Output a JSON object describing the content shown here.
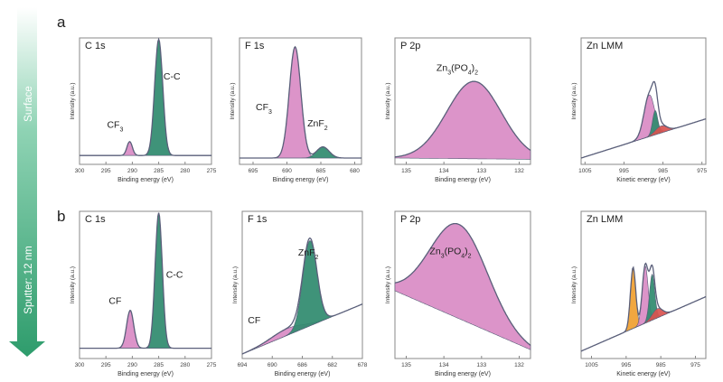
{
  "arrow": {
    "top_label": "Surface",
    "bottom_label": "Sputter: 12 nm"
  },
  "rows": [
    {
      "label": "a"
    },
    {
      "label": "b"
    }
  ],
  "colors": {
    "pink": "#d98bc4",
    "green": "#2f8a6e",
    "orange": "#f0a030",
    "red": "#d9534f",
    "envelope": "#5a5f7a",
    "raw": "#555555",
    "arrow": "#2e9c6c"
  },
  "chart_data": [
    {
      "type": "area",
      "row": "a",
      "title": "C 1s",
      "xlabel": "Binding energy (eV)",
      "ylabel": "Intensity (a.u.)",
      "x_ticks": [
        "300",
        "295",
        "290",
        "285",
        "280",
        "275"
      ],
      "xlim": [
        300,
        275
      ],
      "annotations": [
        {
          "text": "CF",
          "sub": "3"
        },
        {
          "text": "C-C"
        }
      ],
      "peaks": [
        {
          "name": "CF3",
          "center": 290.5,
          "fwhm": 1.2,
          "height": 0.12,
          "color": "pink"
        },
        {
          "name": "C-C",
          "center": 285,
          "fwhm": 1.8,
          "height": 1.0,
          "color": "green"
        }
      ]
    },
    {
      "type": "area",
      "row": "a",
      "title": "F 1s",
      "xlabel": "Binding energy (eV)",
      "ylabel": "Intensity (a.u.)",
      "x_ticks": [
        "695",
        "690",
        "685",
        "680"
      ],
      "xlim": [
        697,
        679
      ],
      "annotations": [
        {
          "text": "CF",
          "sub": "3"
        },
        {
          "text": "ZnF",
          "sub": "2"
        }
      ],
      "peaks": [
        {
          "name": "CF3",
          "center": 688.8,
          "fwhm": 2.0,
          "height": 1.0,
          "color": "pink"
        },
        {
          "name": "ZnF2",
          "center": 684.7,
          "fwhm": 2.2,
          "height": 0.1,
          "color": "green"
        }
      ]
    },
    {
      "type": "area",
      "row": "a",
      "title": "P 2p",
      "xlabel": "Binding energy (eV)",
      "ylabel": "Intensity (a.u.)",
      "x_ticks": [
        "135",
        "134",
        "133",
        "132"
      ],
      "xlim": [
        135.3,
        131.7
      ],
      "annotations": [
        {
          "text": "Zn",
          "parts": [
            [
              "3",
              "sub"
            ],
            [
              "(PO",
              ""
            ],
            [
              "4",
              "sub"
            ],
            [
              ")",
              ""
            ],
            [
              "2",
              "sub"
            ]
          ]
        }
      ],
      "peaks": [
        {
          "name": "Zn3(PO4)2",
          "center": 133.2,
          "fwhm": 1.7,
          "height": 0.85,
          "color": "pink"
        }
      ]
    },
    {
      "type": "area",
      "row": "a",
      "title": "Zn LMM",
      "xlabel": "Kinetic energy (eV)",
      "ylabel": "Intensity (a.u.)",
      "x_ticks": [
        "1005",
        "995",
        "985",
        "975"
      ],
      "xlim": [
        1006,
        974
      ],
      "annotations": [],
      "peaks": [
        {
          "name": "pink",
          "center": 988.5,
          "fwhm": 3.2,
          "height": 0.6,
          "color": "pink"
        },
        {
          "name": "green",
          "center": 987,
          "fwhm": 1.6,
          "height": 0.35,
          "color": "green"
        },
        {
          "name": "red",
          "center": 985.5,
          "fwhm": 3.5,
          "height": 0.1,
          "color": "red"
        }
      ]
    },
    {
      "type": "area",
      "row": "b",
      "title": "C 1s",
      "xlabel": "Binding energy (eV)",
      "ylabel": "Intensity (a.u.)",
      "x_ticks": [
        "300",
        "295",
        "290",
        "285",
        "280",
        "275"
      ],
      "xlim": [
        300,
        275
      ],
      "annotations": [
        {
          "text": "CF"
        },
        {
          "text": "C-C"
        }
      ],
      "peaks": [
        {
          "name": "CF",
          "center": 290.4,
          "fwhm": 1.6,
          "height": 0.28,
          "color": "pink"
        },
        {
          "name": "C-C",
          "center": 285,
          "fwhm": 1.6,
          "height": 1.0,
          "color": "green"
        }
      ]
    },
    {
      "type": "area",
      "row": "b",
      "title": "F 1s",
      "xlabel": "Binding energy (eV)",
      "ylabel": "Intensity (a.u.)",
      "x_ticks": [
        "694",
        "690",
        "686",
        "682",
        "678"
      ],
      "xlim": [
        694,
        678
      ],
      "annotations": [
        {
          "text": "CF"
        },
        {
          "text": "ZnF",
          "sub": "2"
        }
      ],
      "peaks": [
        {
          "name": "CF",
          "center": 688,
          "fwhm": 5.0,
          "height": 0.08,
          "color": "pink"
        },
        {
          "name": "ZnF2",
          "center": 685,
          "fwhm": 2.2,
          "height": 1.0,
          "color": "green"
        }
      ]
    },
    {
      "type": "area",
      "row": "b",
      "title": "P 2p",
      "xlabel": "Binding energy (eV)",
      "ylabel": "Intensity (a.u.)",
      "x_ticks": [
        "135",
        "134",
        "133",
        "132"
      ],
      "xlim": [
        135.3,
        131.7
      ],
      "annotations": [
        {
          "text": "Zn",
          "parts": [
            [
              "3",
              "sub"
            ],
            [
              "(PO",
              ""
            ],
            [
              "4",
              "sub"
            ],
            [
              ")",
              ""
            ],
            [
              "2",
              "sub"
            ]
          ]
        }
      ],
      "peaks": [
        {
          "name": "Zn3(PO4)2",
          "center": 133.6,
          "fwhm": 1.8,
          "height": 0.8,
          "color": "pink"
        }
      ]
    },
    {
      "type": "area",
      "row": "b",
      "title": "Zn LMM",
      "xlabel": "Kinetic energy (eV)",
      "ylabel": "Intensity (a.u.)",
      "x_ticks": [
        "1005",
        "995",
        "985",
        "975"
      ],
      "xlim": [
        1008,
        972
      ],
      "annotations": [],
      "peaks": [
        {
          "name": "orange",
          "center": 993,
          "fwhm": 1.8,
          "height": 0.8,
          "color": "orange"
        },
        {
          "name": "pink",
          "center": 989.5,
          "fwhm": 2.0,
          "height": 0.75,
          "color": "pink"
        },
        {
          "name": "green",
          "center": 987.5,
          "fwhm": 1.8,
          "height": 0.6,
          "color": "green"
        },
        {
          "name": "red",
          "center": 986,
          "fwhm": 3.5,
          "height": 0.12,
          "color": "red"
        }
      ]
    }
  ]
}
